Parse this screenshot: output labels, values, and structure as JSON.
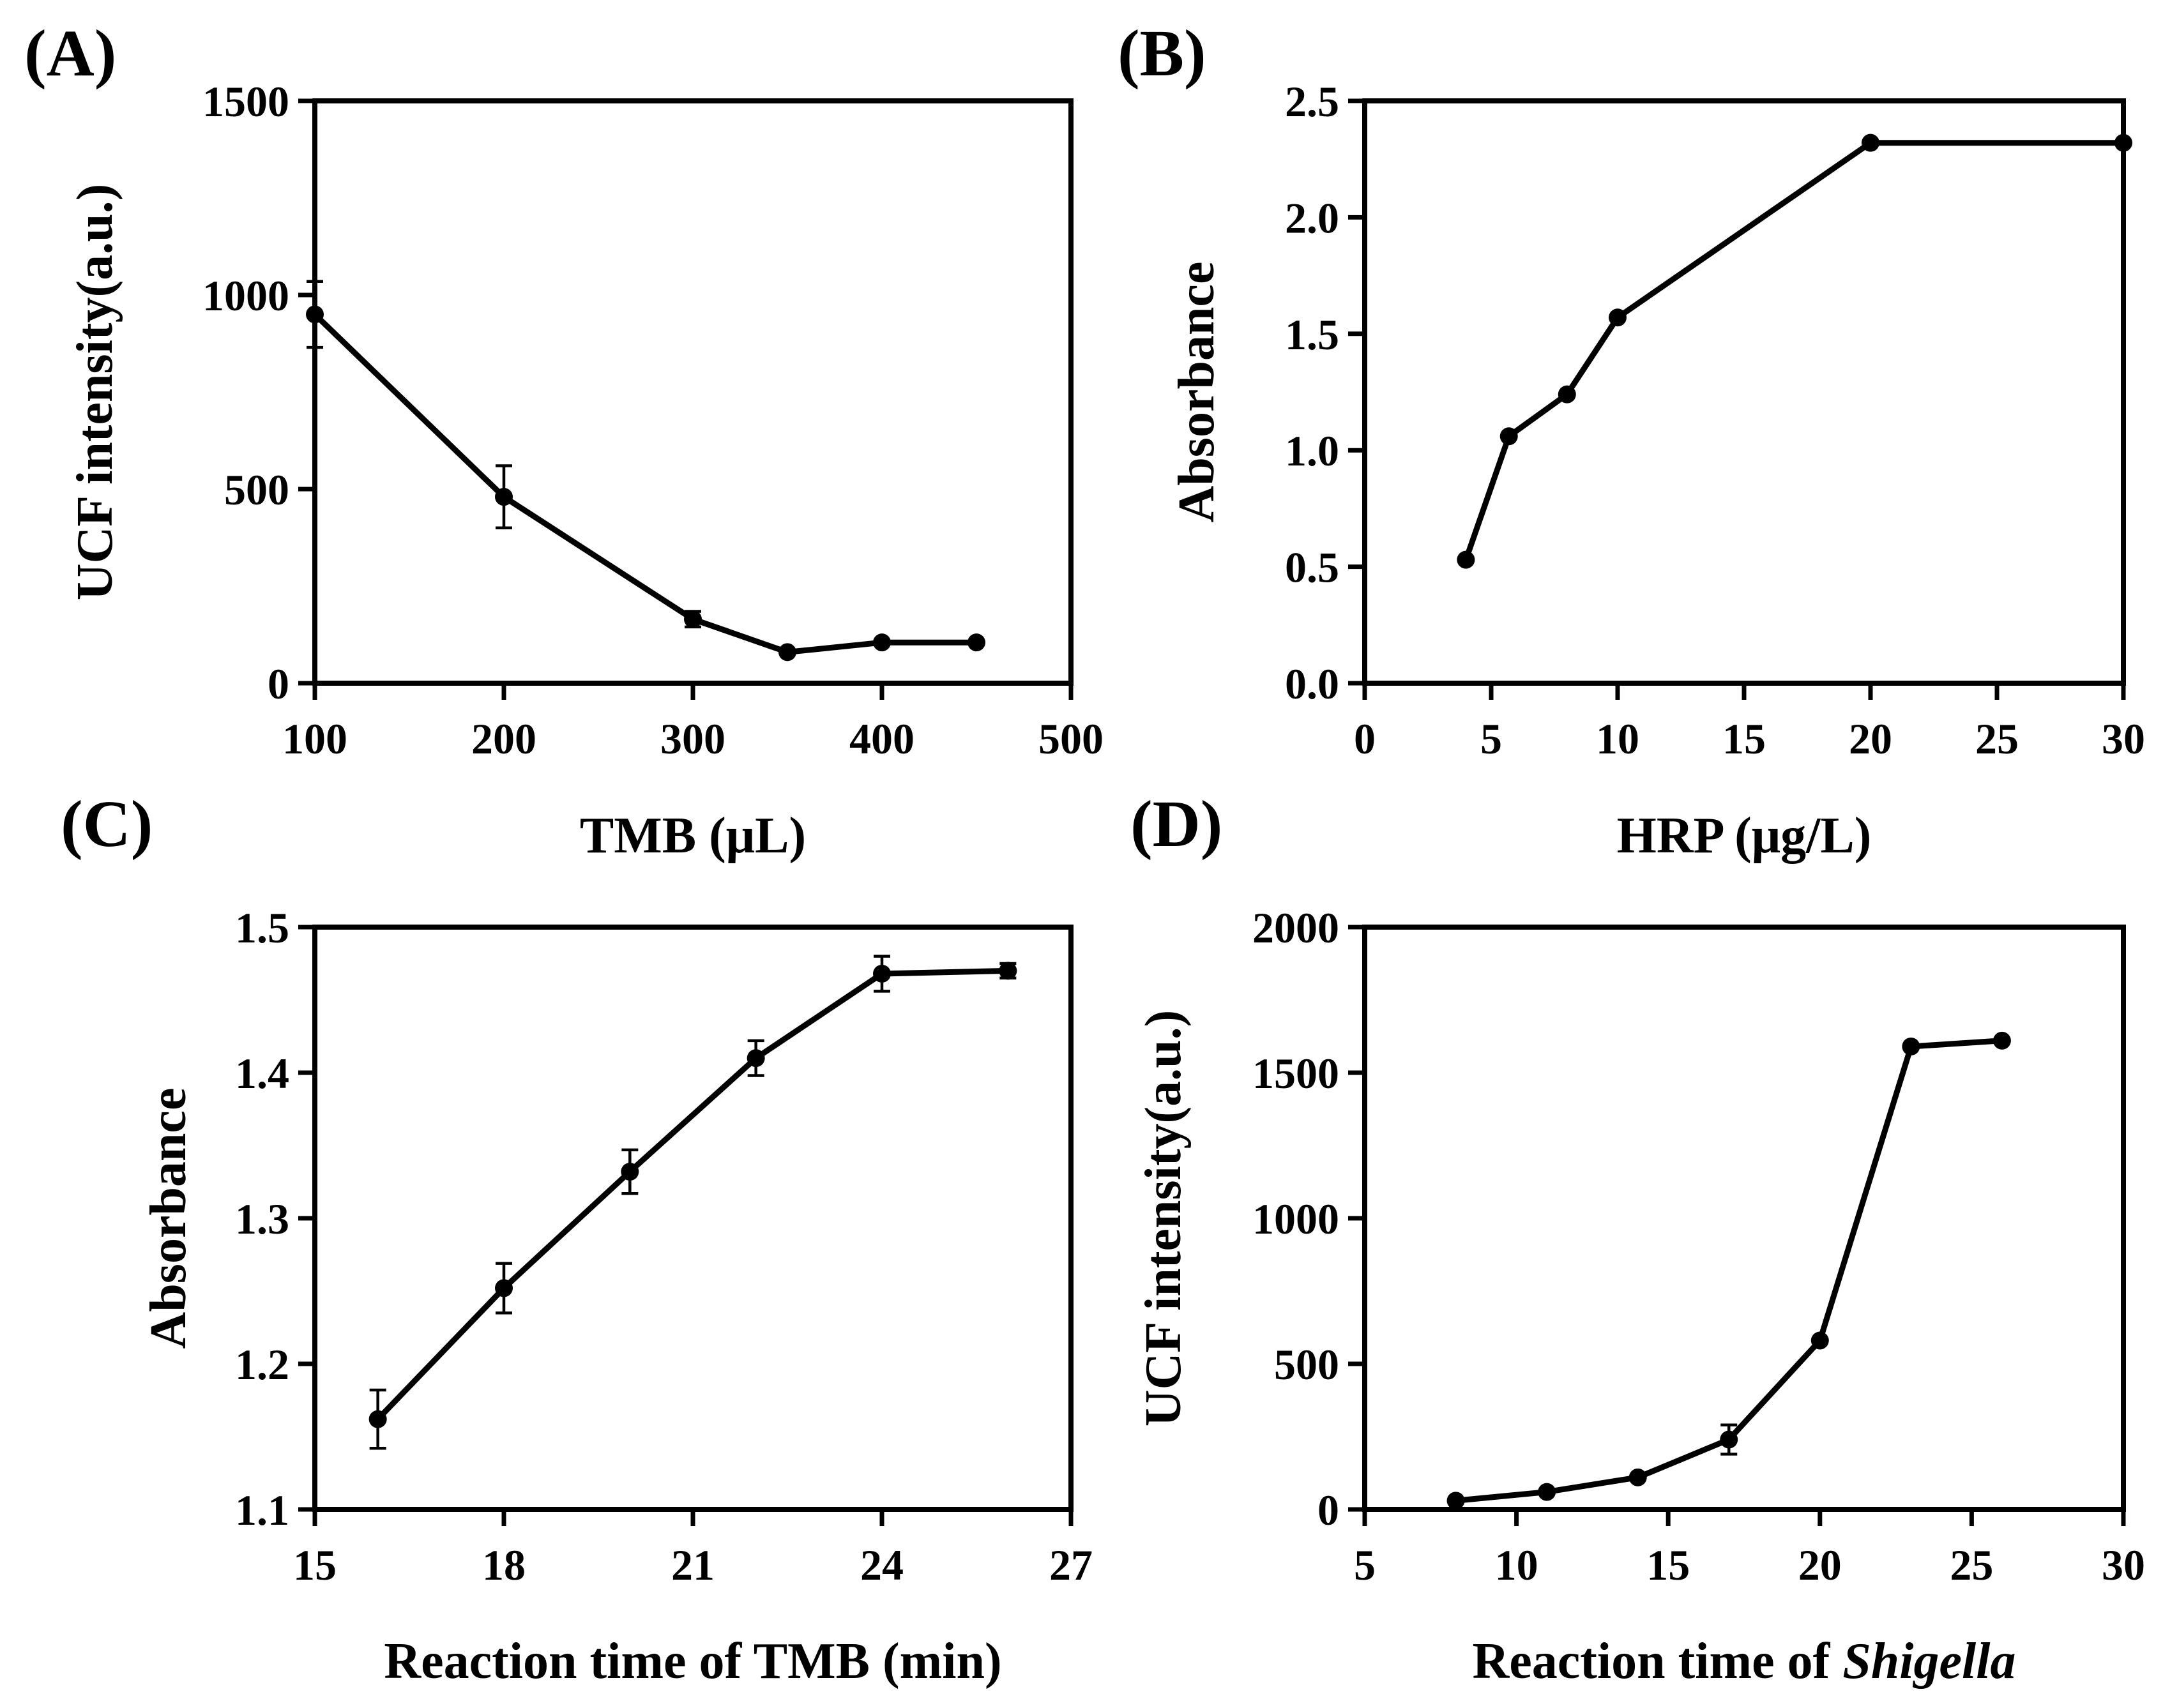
{
  "chart_data": [
    {
      "panel": "(A)",
      "type": "line",
      "xlabel": "TMB (μL)",
      "ylabel": "UCF intensity(a.u.)",
      "xlim": [
        100,
        500
      ],
      "ylim": [
        0,
        1500
      ],
      "xticks": [
        100,
        200,
        300,
        400,
        500
      ],
      "yticks": [
        0,
        500,
        1000,
        1500
      ],
      "x": [
        100,
        200,
        300,
        350,
        400,
        450
      ],
      "y": [
        950,
        480,
        165,
        80,
        105,
        105
      ],
      "yerr": [
        85,
        80,
        20,
        0,
        0,
        0
      ]
    },
    {
      "panel": "(B)",
      "type": "line",
      "xlabel": "HRP (μg/L)",
      "ylabel": "Absorbance",
      "xlim": [
        0,
        30
      ],
      "ylim": [
        0,
        2.5
      ],
      "xticks": [
        0,
        5,
        10,
        15,
        20,
        25,
        30
      ],
      "yticks": [
        0.0,
        0.5,
        1.0,
        1.5,
        2.0,
        2.5
      ],
      "yticklabels": [
        "0.0",
        "0.5",
        "1.0",
        "1.5",
        "2.0",
        "2.5"
      ],
      "x": [
        4,
        5.7,
        8,
        10,
        20,
        30
      ],
      "y": [
        0.53,
        1.06,
        1.24,
        1.57,
        2.32,
        2.32
      ],
      "yerr": [
        0,
        0,
        0,
        0,
        0,
        0
      ]
    },
    {
      "panel": "(C)",
      "type": "line",
      "xlabel": "Reaction time of TMB (min)",
      "ylabel": "Absorbance",
      "xlim": [
        15,
        27
      ],
      "ylim": [
        1.1,
        1.5
      ],
      "xticks": [
        15,
        18,
        21,
        24,
        27
      ],
      "yticks": [
        1.1,
        1.2,
        1.3,
        1.4,
        1.5
      ],
      "yticklabels": [
        "1.1",
        "1.2",
        "1.3",
        "1.4",
        "1.5"
      ],
      "x": [
        16,
        18,
        20,
        22,
        24,
        26
      ],
      "y": [
        1.162,
        1.252,
        1.332,
        1.41,
        1.468,
        1.47
      ],
      "yerr": [
        0.02,
        0.017,
        0.015,
        0.012,
        0.012,
        0.005
      ]
    },
    {
      "panel": "(D)",
      "type": "line",
      "xlabel_main": "Reaction time of ",
      "xlabel_italic": "Shigella",
      "ylabel": "UCF intensity(a.u.)",
      "xlim": [
        5,
        30
      ],
      "ylim": [
        0,
        2000
      ],
      "xticks": [
        5,
        10,
        15,
        20,
        25,
        30
      ],
      "yticks": [
        0,
        500,
        1000,
        1500,
        2000
      ],
      "x": [
        8,
        11,
        14,
        17,
        20,
        23,
        26
      ],
      "y": [
        30,
        60,
        110,
        240,
        580,
        1590,
        1610
      ],
      "yerr": [
        0,
        0,
        0,
        50,
        0,
        0,
        0
      ]
    }
  ]
}
